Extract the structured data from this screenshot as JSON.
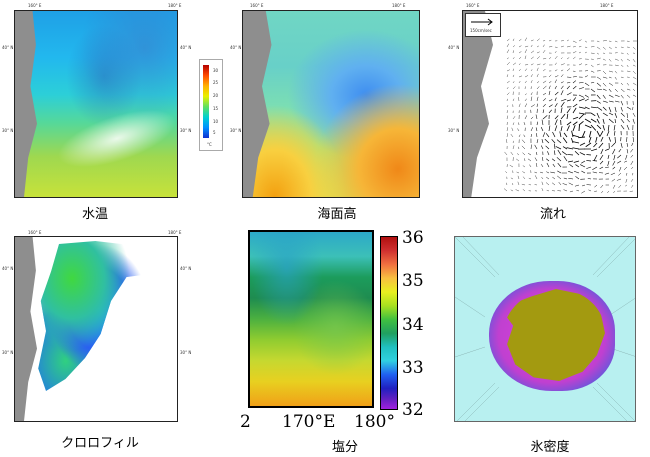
{
  "panels": {
    "sst": {
      "caption": "水温",
      "ticks": {
        "t1": "160° E",
        "t2": "180° E",
        "l1": "30° N",
        "l2": "40° N",
        "r1": "40° N",
        "r2": "30° N"
      }
    },
    "ssh": {
      "caption": "海面高",
      "ticks": {
        "t1": "160° E",
        "t2": "180° E",
        "l1": "30° N",
        "l2": "40° N"
      }
    },
    "flow": {
      "caption": "流れ",
      "scale_label": "150cm/sec",
      "ticks": {
        "t1": "160° E",
        "t2": "180° E",
        "l1": "30° N",
        "l2": "40° N"
      }
    },
    "chl": {
      "caption": "クロロフィル",
      "ticks": {
        "t1": "160° E",
        "t2": "180° E",
        "l1": "30° N",
        "l2": "40° N",
        "r1": "40° N",
        "r2": "30° N"
      }
    },
    "sal": {
      "caption": "塩分",
      "xtick_left": "2",
      "xtick_mid": "170°E",
      "xtick_right": "180°",
      "colorbar_labels": [
        "36",
        "35",
        "34",
        "33",
        "32"
      ]
    },
    "ice": {
      "caption": "氷密度"
    }
  },
  "sst_colorbar": {
    "labels": [
      "30",
      "25",
      "20",
      "15",
      "10",
      "5"
    ],
    "unit": "°C"
  },
  "colors": {
    "land": "#8e8e8e",
    "ice_land": "#a39a10",
    "ice_sea": "#b8f0f0"
  }
}
